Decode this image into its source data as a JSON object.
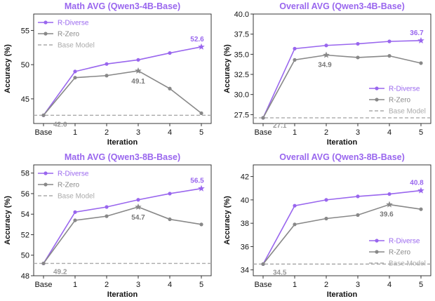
{
  "colors": {
    "r_diverse": "#9966ee",
    "r_zero": "#888888",
    "base_model": "#aaaaaa",
    "title": "#9966ee",
    "annotation_best": "#9966ee",
    "annotation_zero": "#777777",
    "annotation_base": "#999999"
  },
  "chart_data": [
    {
      "type": "line",
      "title": "Math AVG (Qwen3-4B-Base)",
      "xlabel": "Iteration",
      "ylabel": "Accuracy (%)",
      "categories": [
        "Base",
        "1",
        "2",
        "3",
        "4",
        "5"
      ],
      "ylim": [
        41.4,
        57.4
      ],
      "yticks": [
        "45",
        "50",
        "55"
      ],
      "series": [
        {
          "name": "R-Diverse",
          "values": [
            42.6,
            49.0,
            50.1,
            50.7,
            51.7,
            52.6
          ]
        },
        {
          "name": "R-Zero",
          "values": [
            42.6,
            48.1,
            48.4,
            49.1,
            46.5,
            42.9
          ]
        }
      ],
      "baseline": {
        "name": "Base Model",
        "value": 42.6
      },
      "annotations": {
        "best": "52.6",
        "zero": "49.1",
        "base": "42.6"
      },
      "legend": "top-left",
      "grid": false
    },
    {
      "type": "line",
      "title": "Overall AVG (Qwen3-4B-Base)",
      "xlabel": "Iteration",
      "ylabel": "Accuracy (%)",
      "categories": [
        "Base",
        "1",
        "2",
        "3",
        "4",
        "5"
      ],
      "ylim": [
        26.4,
        40.0
      ],
      "yticks": [
        "27.5",
        "30.0",
        "32.5",
        "35.0",
        "37.5",
        "40.0"
      ],
      "series": [
        {
          "name": "R-Diverse",
          "values": [
            27.1,
            35.7,
            36.1,
            36.3,
            36.6,
            36.7
          ]
        },
        {
          "name": "R-Zero",
          "values": [
            27.1,
            34.3,
            34.9,
            34.6,
            34.8,
            33.9
          ]
        }
      ],
      "baseline": {
        "name": "Base Model",
        "value": 27.1
      },
      "annotations": {
        "best": "36.7",
        "zero": "34.9",
        "base": "27.1"
      },
      "legend": "bottom-right",
      "grid": false
    },
    {
      "type": "line",
      "title": "Math AVG (Qwen3-8B-Base)",
      "xlabel": "Iteration",
      "ylabel": "Accuracy (%)",
      "categories": [
        "Base",
        "1",
        "2",
        "3",
        "4",
        "5"
      ],
      "ylim": [
        48.0,
        58.8
      ],
      "yticks": [
        "48",
        "50",
        "52",
        "54",
        "56",
        "58"
      ],
      "series": [
        {
          "name": "R-Diverse",
          "values": [
            49.2,
            54.2,
            54.7,
            55.4,
            56.0,
            56.5
          ]
        },
        {
          "name": "R-Zero",
          "values": [
            49.2,
            53.4,
            53.8,
            54.7,
            53.5,
            53.0
          ]
        }
      ],
      "baseline": {
        "name": "Base Model",
        "value": 49.2
      },
      "annotations": {
        "best": "56.5",
        "zero": "54.7",
        "base": "49.2"
      },
      "legend": "top-left",
      "grid": false
    },
    {
      "type": "line",
      "title": "Overall AVG (Qwen3-8B-Base)",
      "xlabel": "Iteration",
      "ylabel": "Accuracy (%)",
      "categories": [
        "Base",
        "1",
        "2",
        "3",
        "4",
        "5"
      ],
      "ylim": [
        33.5,
        43.0
      ],
      "yticks": [
        "34",
        "36",
        "38",
        "40",
        "42"
      ],
      "series": [
        {
          "name": "R-Diverse",
          "values": [
            34.5,
            39.5,
            40.0,
            40.3,
            40.5,
            40.8
          ]
        },
        {
          "name": "R-Zero",
          "values": [
            34.5,
            37.9,
            38.4,
            38.7,
            39.6,
            39.2
          ]
        }
      ],
      "baseline": {
        "name": "Base Model",
        "value": 34.5
      },
      "annotations": {
        "best": "40.8",
        "zero": "39.6",
        "base": "34.5"
      },
      "legend": "bottom-right",
      "grid": false
    }
  ]
}
